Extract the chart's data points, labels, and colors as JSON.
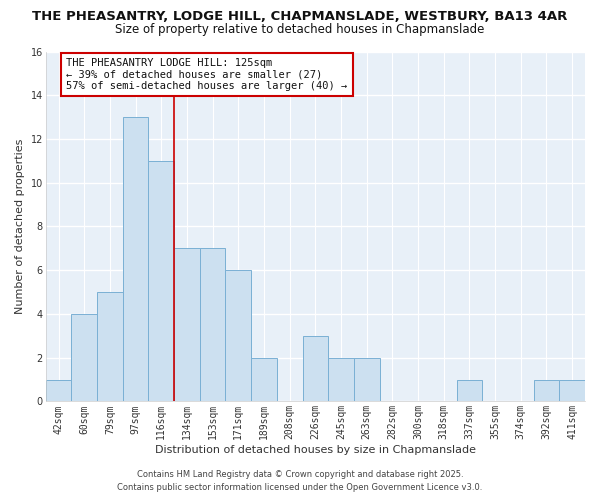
{
  "title_line1": "THE PHEASANTRY, LODGE HILL, CHAPMANSLADE, WESTBURY, BA13 4AR",
  "title_line2": "Size of property relative to detached houses in Chapmanslade",
  "xlabel": "Distribution of detached houses by size in Chapmanslade",
  "ylabel": "Number of detached properties",
  "bin_labels": [
    "42sqm",
    "60sqm",
    "79sqm",
    "97sqm",
    "116sqm",
    "134sqm",
    "153sqm",
    "171sqm",
    "189sqm",
    "208sqm",
    "226sqm",
    "245sqm",
    "263sqm",
    "282sqm",
    "300sqm",
    "318sqm",
    "337sqm",
    "355sqm",
    "374sqm",
    "392sqm",
    "411sqm"
  ],
  "bin_values": [
    1,
    4,
    5,
    13,
    11,
    7,
    7,
    6,
    2,
    0,
    3,
    2,
    2,
    0,
    0,
    0,
    1,
    0,
    0,
    1,
    1
  ],
  "bar_color": "#cce0f0",
  "bar_edge_color": "#7ab0d4",
  "annotation_line1": "THE PHEASANTRY LODGE HILL: 125sqm",
  "annotation_line2": "← 39% of detached houses are smaller (27)",
  "annotation_line3": "57% of semi-detached houses are larger (40) →",
  "marker_line_color": "#cc0000",
  "annotation_box_color": "#ffffff",
  "annotation_box_edge": "#cc0000",
  "ylim": [
    0,
    16
  ],
  "yticks": [
    0,
    2,
    4,
    6,
    8,
    10,
    12,
    14,
    16
  ],
  "footer_line1": "Contains HM Land Registry data © Crown copyright and database right 2025.",
  "footer_line2": "Contains public sector information licensed under the Open Government Licence v3.0.",
  "background_color": "#ffffff",
  "plot_bg_color": "#e8f0f8",
  "grid_color": "#ffffff",
  "title_fontsize": 9.5,
  "subtitle_fontsize": 8.5,
  "axis_label_fontsize": 8,
  "tick_fontsize": 7,
  "annotation_fontsize": 7.5,
  "footer_fontsize": 6
}
